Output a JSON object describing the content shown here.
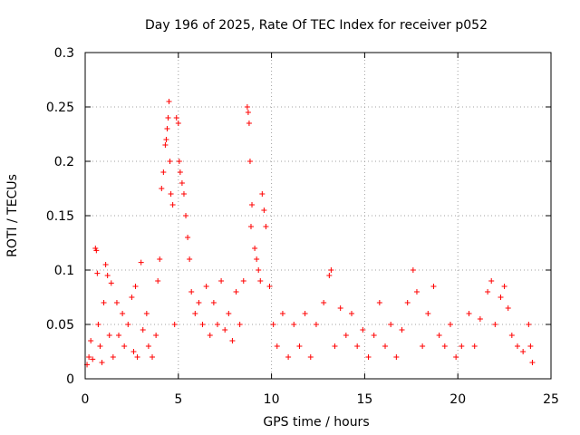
{
  "chart_data": {
    "type": "scatter",
    "title": "Day 196 of 2025, Rate Of TEC Index for receiver p052",
    "xlabel": "GPS time / hours",
    "ylabel": "ROTI / TECUs",
    "xlim": [
      0,
      25
    ],
    "ylim": [
      0,
      0.3
    ],
    "xticks": [
      0,
      5,
      10,
      15,
      20,
      25
    ],
    "xtick_labels": [
      "0",
      "5",
      "10",
      "15",
      "20",
      "25"
    ],
    "yticks": [
      0,
      0.05,
      0.1,
      0.15,
      0.2,
      0.25,
      0.3
    ],
    "ytick_labels": [
      "0",
      "0.05",
      "0.1",
      "0.15",
      "0.2",
      "0.25",
      "0.3"
    ],
    "grid": true,
    "marker": "+",
    "color": "#ff0000",
    "series": [
      {
        "name": "ROTI",
        "points": [
          [
            0.1,
            0.013
          ],
          [
            0.2,
            0.02
          ],
          [
            0.3,
            0.035
          ],
          [
            0.4,
            0.018
          ],
          [
            0.55,
            0.12
          ],
          [
            0.6,
            0.118
          ],
          [
            0.65,
            0.097
          ],
          [
            0.7,
            0.05
          ],
          [
            0.8,
            0.03
          ],
          [
            0.9,
            0.015
          ],
          [
            1.0,
            0.07
          ],
          [
            1.1,
            0.105
          ],
          [
            1.2,
            0.095
          ],
          [
            1.3,
            0.04
          ],
          [
            1.4,
            0.088
          ],
          [
            1.5,
            0.02
          ],
          [
            1.7,
            0.07
          ],
          [
            1.8,
            0.04
          ],
          [
            2.0,
            0.06
          ],
          [
            2.1,
            0.03
          ],
          [
            2.3,
            0.05
          ],
          [
            2.5,
            0.075
          ],
          [
            2.6,
            0.025
          ],
          [
            2.7,
            0.085
          ],
          [
            2.8,
            0.02
          ],
          [
            3.0,
            0.107
          ],
          [
            3.1,
            0.045
          ],
          [
            3.3,
            0.06
          ],
          [
            3.4,
            0.03
          ],
          [
            3.6,
            0.02
          ],
          [
            3.8,
            0.04
          ],
          [
            3.9,
            0.09
          ],
          [
            4.0,
            0.11
          ],
          [
            4.1,
            0.175
          ],
          [
            4.2,
            0.19
          ],
          [
            4.3,
            0.215
          ],
          [
            4.35,
            0.22
          ],
          [
            4.4,
            0.23
          ],
          [
            4.45,
            0.24
          ],
          [
            4.5,
            0.255
          ],
          [
            4.55,
            0.2
          ],
          [
            4.6,
            0.17
          ],
          [
            4.7,
            0.16
          ],
          [
            4.8,
            0.05
          ],
          [
            4.9,
            0.24
          ],
          [
            5.0,
            0.235
          ],
          [
            5.05,
            0.2
          ],
          [
            5.1,
            0.19
          ],
          [
            5.2,
            0.18
          ],
          [
            5.3,
            0.17
          ],
          [
            5.4,
            0.15
          ],
          [
            5.5,
            0.13
          ],
          [
            5.6,
            0.11
          ],
          [
            5.7,
            0.08
          ],
          [
            5.9,
            0.06
          ],
          [
            6.1,
            0.07
          ],
          [
            6.3,
            0.05
          ],
          [
            6.5,
            0.085
          ],
          [
            6.7,
            0.04
          ],
          [
            6.9,
            0.07
          ],
          [
            7.1,
            0.05
          ],
          [
            7.3,
            0.09
          ],
          [
            7.5,
            0.045
          ],
          [
            7.7,
            0.06
          ],
          [
            7.9,
            0.035
          ],
          [
            8.1,
            0.08
          ],
          [
            8.3,
            0.05
          ],
          [
            8.5,
            0.09
          ],
          [
            8.7,
            0.25
          ],
          [
            8.75,
            0.245
          ],
          [
            8.8,
            0.235
          ],
          [
            8.85,
            0.2
          ],
          [
            8.9,
            0.14
          ],
          [
            8.95,
            0.16
          ],
          [
            9.1,
            0.12
          ],
          [
            9.2,
            0.11
          ],
          [
            9.3,
            0.1
          ],
          [
            9.4,
            0.09
          ],
          [
            9.5,
            0.17
          ],
          [
            9.6,
            0.155
          ],
          [
            9.7,
            0.14
          ],
          [
            9.9,
            0.085
          ],
          [
            10.1,
            0.05
          ],
          [
            10.3,
            0.03
          ],
          [
            10.6,
            0.06
          ],
          [
            10.9,
            0.02
          ],
          [
            11.2,
            0.05
          ],
          [
            11.5,
            0.03
          ],
          [
            11.8,
            0.06
          ],
          [
            12.1,
            0.02
          ],
          [
            12.4,
            0.05
          ],
          [
            12.8,
            0.07
          ],
          [
            13.1,
            0.095
          ],
          [
            13.2,
            0.1
          ],
          [
            13.4,
            0.03
          ],
          [
            13.7,
            0.065
          ],
          [
            14.0,
            0.04
          ],
          [
            14.3,
            0.06
          ],
          [
            14.6,
            0.03
          ],
          [
            14.9,
            0.045
          ],
          [
            15.2,
            0.02
          ],
          [
            15.5,
            0.04
          ],
          [
            15.8,
            0.07
          ],
          [
            16.1,
            0.03
          ],
          [
            16.4,
            0.05
          ],
          [
            16.7,
            0.02
          ],
          [
            17.0,
            0.045
          ],
          [
            17.3,
            0.07
          ],
          [
            17.6,
            0.1
          ],
          [
            17.8,
            0.08
          ],
          [
            18.1,
            0.03
          ],
          [
            18.4,
            0.06
          ],
          [
            18.7,
            0.085
          ],
          [
            19.0,
            0.04
          ],
          [
            19.3,
            0.03
          ],
          [
            19.6,
            0.05
          ],
          [
            19.9,
            0.02
          ],
          [
            20.2,
            0.03
          ],
          [
            20.6,
            0.06
          ],
          [
            20.9,
            0.03
          ],
          [
            21.2,
            0.055
          ],
          [
            21.6,
            0.08
          ],
          [
            21.8,
            0.09
          ],
          [
            22.0,
            0.05
          ],
          [
            22.3,
            0.075
          ],
          [
            22.5,
            0.085
          ],
          [
            22.7,
            0.065
          ],
          [
            22.9,
            0.04
          ],
          [
            23.2,
            0.03
          ],
          [
            23.5,
            0.025
          ],
          [
            23.8,
            0.05
          ],
          [
            23.9,
            0.03
          ],
          [
            24.0,
            0.015
          ]
        ]
      }
    ]
  }
}
